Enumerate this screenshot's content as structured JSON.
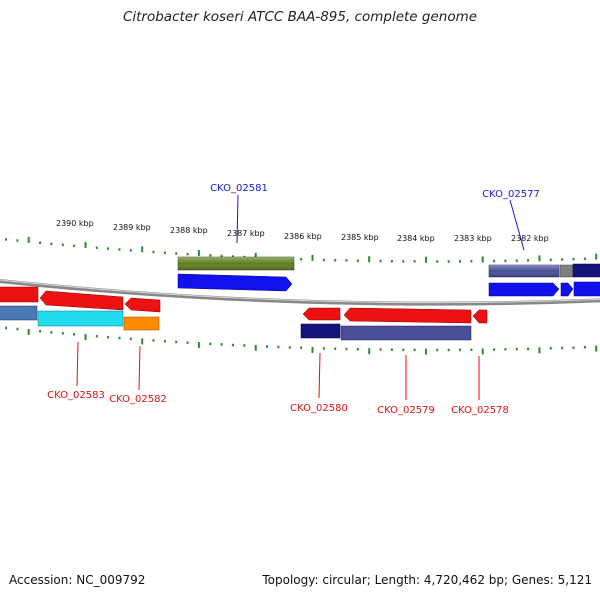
{
  "title": "Citrobacter koseri ATCC BAA-895, complete genome",
  "footer": {
    "accession": "Accession: NC_009792",
    "summary": "Topology: circular; Length: 4,720,462 bp; Genes: 5,121"
  },
  "scale_labels": [
    "2390 kbp",
    "2389 kbp",
    "2388 kbp",
    "2387 kbp",
    "2386 kbp",
    "2385 kbp",
    "2384 kbp",
    "2383 kbp",
    "2382 kbp"
  ],
  "gene_labels": {
    "cko_02581": "CKO_02581",
    "cko_02577": "CKO_02577",
    "cko_02583": "CKO_02583",
    "cko_02582": "CKO_02582",
    "cko_02580": "CKO_02580",
    "cko_02579": "CKO_02579",
    "cko_02578": "CKO_02578"
  },
  "colors": {
    "tick": "#2e8b2e",
    "backbone": "#808080",
    "label_forward": "#1a1acc",
    "label_reverse": "#dd1111",
    "gene_red": "#ee1111",
    "gene_blue": "#1111ee",
    "gene_olive": "#5f7f1f",
    "gene_slate": "#4a4e9a",
    "gene_navy": "#14147a",
    "gene_cyan": "#22ddee",
    "gene_orange": "#ff8c00"
  }
}
